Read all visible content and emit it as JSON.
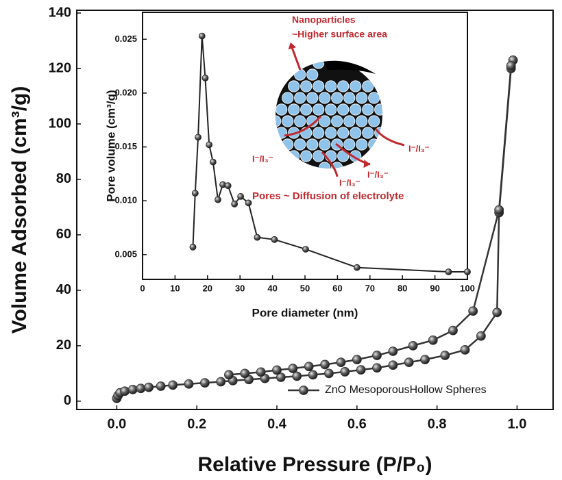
{
  "chart_data": [
    {
      "type": "line",
      "x_label": "Relative Pressure (P/P₀)",
      "y_label": "Volume Adsorbed (cm³/g)",
      "xlim": [
        -0.1,
        1.09
      ],
      "ylim": [
        -3,
        141
      ],
      "xticks": [
        {
          "value": 0,
          "label": "0.0"
        },
        0.2,
        0.4,
        0.6,
        0.8,
        {
          "value": 1,
          "label": "1.0"
        }
      ],
      "yticks": [
        0,
        20,
        40,
        60,
        80,
        100,
        120,
        140
      ],
      "legend": "lower right",
      "series": [
        {
          "name": "ZnO MesoporousHollow Spheres",
          "color": "#333333",
          "x": [
            0,
            0.003,
            0.008,
            0.02,
            0.04,
            0.06,
            0.08,
            0.11,
            0.14,
            0.18,
            0.22,
            0.26,
            0.29,
            0.33,
            0.37,
            0.41,
            0.45,
            0.49,
            0.53,
            0.57,
            0.61,
            0.65,
            0.69,
            0.73,
            0.77,
            0.82,
            0.87,
            0.91,
            0.95,
            0.955,
            0.985,
            0.99,
            0.985,
            0.955,
            0.89,
            0.84,
            0.79,
            0.74,
            0.69,
            0.65,
            0.6,
            0.56,
            0.52,
            0.48,
            0.44,
            0.4,
            0.36,
            0.32,
            0.28
          ],
          "values": [
            1,
            2,
            3,
            3.6,
            4.2,
            4.6,
            5,
            5.4,
            5.8,
            6.2,
            6.6,
            7,
            7.4,
            7.8,
            8.2,
            8.6,
            9,
            9.5,
            10,
            10.6,
            11.3,
            12,
            13,
            14,
            15,
            16.5,
            18.5,
            23.5,
            32,
            68,
            120,
            123,
            121,
            69,
            32.5,
            25.5,
            22,
            20,
            18,
            16.5,
            15,
            14,
            13.2,
            12.5,
            11.8,
            11.2,
            10.5,
            10,
            9.5
          ]
        }
      ]
    },
    {
      "type": "line",
      "x_label": "Pore diameter (nm)",
      "y_label": "Pore volume (cm³/g)",
      "xlim": [
        0,
        100
      ],
      "ylim": [
        0.0027,
        0.0275
      ],
      "xticks": [
        0,
        10,
        20,
        30,
        40,
        50,
        60,
        70,
        80,
        90,
        100
      ],
      "yticks": [
        0.005,
        {
          "value": 0.01,
          "label": "0.010"
        },
        0.015,
        {
          "value": 0.02,
          "label": "0.020"
        },
        0.025
      ],
      "annotations": [
        "Nanoparticles",
        "~Higher surface area",
        "I⁻/I₃⁻",
        "I⁻/I₃⁻",
        "I⁻/I₃⁻",
        "I⁻/I₃⁻",
        "Pores ~ Diffusion of electrolyte"
      ],
      "series": [
        {
          "color": "#222222",
          "x": [
            15.5,
            16.2,
            17.1,
            18.3,
            19.3,
            20.5,
            21.7,
            23.2,
            24.7,
            26.3,
            28.3,
            30.2,
            32.6,
            35.3,
            40.6,
            50.2,
            66,
            94.2,
            100
          ],
          "values": [
            0.0057,
            0.0107,
            0.0159,
            0.0253,
            0.0214,
            0.0152,
            0.0136,
            0.0101,
            0.0115,
            0.0114,
            0.0097,
            0.0104,
            0.0098,
            0.0066,
            0.0064,
            0.0055,
            0.0038,
            0.0034,
            0.0034
          ]
        }
      ]
    }
  ]
}
